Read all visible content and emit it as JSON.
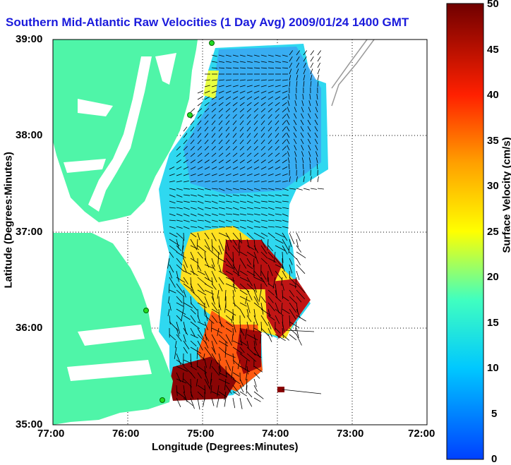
{
  "title": "Southern Mid-Atlantic Raw Velocities (1 Day Avg) 2009/01/24 1400 GMT",
  "x_axis": {
    "label": "Longitude (Degrees:Minutes)",
    "ticks": [
      "77:00",
      "76:00",
      "75:00",
      "74:00",
      "73:00",
      "72:00"
    ]
  },
  "y_axis": {
    "label": "Latitude (Degrees:Minutes)",
    "ticks": [
      "39:00",
      "38:00",
      "37:00",
      "36:00",
      "35:00"
    ]
  },
  "colorbar": {
    "label": "Surface Velocity (cm/s)",
    "ticks": [
      "50",
      "45",
      "40",
      "35",
      "30",
      "25",
      "20",
      "15",
      "10",
      "5",
      "0"
    ],
    "min": 0,
    "max": 50
  },
  "colors": {
    "land": "#4ff5a8",
    "title": "#1a1adc",
    "low": "#0a6cf5",
    "high": "#7a0000"
  }
}
